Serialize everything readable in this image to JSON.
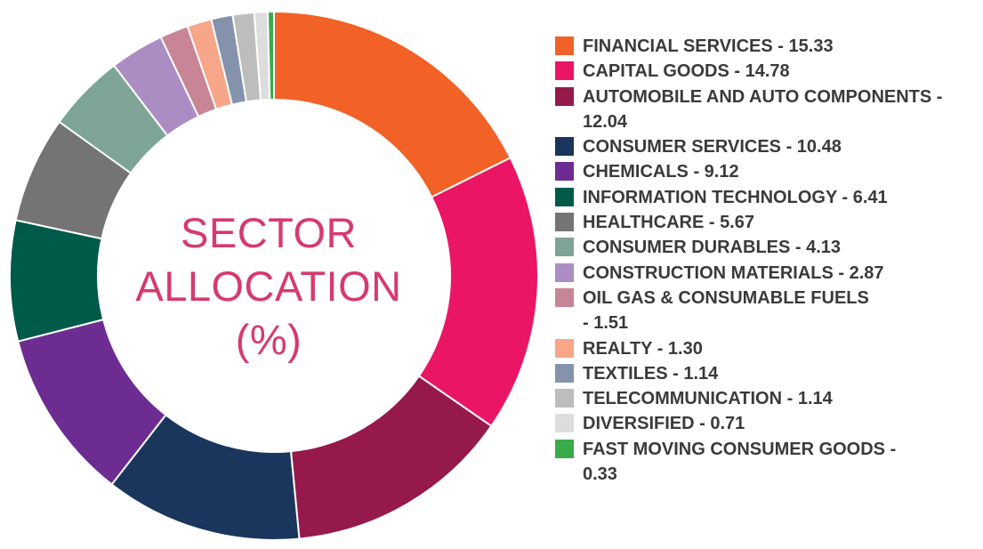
{
  "chart_data": {
    "type": "pie",
    "style": "donut",
    "title_lines": [
      "SECTOR",
      "ALLOCATION",
      "(%)"
    ],
    "legend_position": "right",
    "slices": [
      {
        "label": "FINANCIAL SERVICES - 15.33",
        "name": "FINANCIAL SERVICES",
        "value": 15.33,
        "color": "#f26126"
      },
      {
        "label": "CAPITAL GOODS - 14.78",
        "name": "CAPITAL GOODS",
        "value": 14.78,
        "color": "#eb1565"
      },
      {
        "label": "AUTOMOBILE AND AUTO COMPONENTS -\n12.04",
        "name": "AUTOMOBILE AND AUTO COMPONENTS",
        "value": 12.04,
        "color": "#96194c"
      },
      {
        "label": "CONSUMER SERVICES - 10.48",
        "name": "CONSUMER SERVICES",
        "value": 10.48,
        "color": "#1b365d"
      },
      {
        "label": "CHEMICALS - 9.12",
        "name": "CHEMICALS",
        "value": 9.12,
        "color": "#6d2c91"
      },
      {
        "label": "INFORMATION TECHNOLOGY - 6.41",
        "name": "INFORMATION TECHNOLOGY",
        "value": 6.41,
        "color": "#005a49"
      },
      {
        "label": "HEALTHCARE - 5.67",
        "name": "HEALTHCARE",
        "value": 5.67,
        "color": "#747474"
      },
      {
        "label": "CONSUMER DURABLES - 4.13",
        "name": "CONSUMER DURABLES",
        "value": 4.13,
        "color": "#7ea497"
      },
      {
        "label": "CONSTRUCTION MATERIALS - 2.87",
        "name": "CONSTRUCTION MATERIALS",
        "value": 2.87,
        "color": "#ab8dc4"
      },
      {
        "label": "OIL GAS & CONSUMABLE FUELS\n- 1.51",
        "name": "OIL GAS & CONSUMABLE FUELS",
        "value": 1.51,
        "color": "#c78596"
      },
      {
        "label": "REALTY - 1.30",
        "name": "REALTY",
        "value": 1.3,
        "color": "#f7a689"
      },
      {
        "label": "TEXTILES - 1.14",
        "name": "TEXTILES",
        "value": 1.14,
        "color": "#8592ab"
      },
      {
        "label": "TELECOMMUNICATION - 1.14",
        "name": "TELECOMMUNICATION",
        "value": 1.14,
        "color": "#bdbdbd"
      },
      {
        "label": "DIVERSIFIED - 0.71",
        "name": "DIVERSIFIED",
        "value": 0.71,
        "color": "#dddddd"
      },
      {
        "label": "FAST MOVING CONSUMER GOODS -\n0.33",
        "name": "FAST MOVING CONSUMER GOODS",
        "value": 0.33,
        "color": "#3aab4a"
      }
    ]
  }
}
